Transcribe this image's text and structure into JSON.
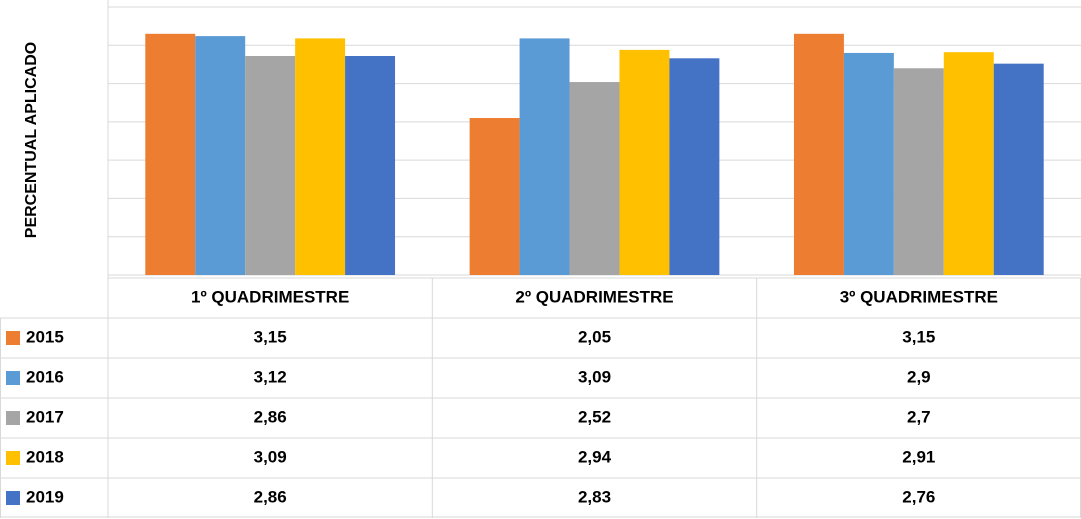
{
  "chart_data": {
    "type": "bar",
    "y_label": "PERCENTUAL APLICADO",
    "categories": [
      "1º QUADRIMESTRE",
      "2º QUADRIMESTRE",
      "3º QUADRIMESTRE"
    ],
    "series": [
      {
        "name": "2015",
        "color": "#ED7D31",
        "values": [
          3.15,
          2.05,
          3.15
        ],
        "value_labels": [
          "3,15",
          "2,05",
          "3,15"
        ]
      },
      {
        "name": "2016",
        "color": "#5B9BD5",
        "values": [
          3.12,
          3.09,
          2.9
        ],
        "value_labels": [
          "3,12",
          "3,09",
          "2,9"
        ]
      },
      {
        "name": "2017",
        "color": "#A5A5A5",
        "values": [
          2.86,
          2.52,
          2.7
        ],
        "value_labels": [
          "2,86",
          "2,52",
          "2,7"
        ]
      },
      {
        "name": "2018",
        "color": "#FFC000",
        "values": [
          3.09,
          2.94,
          2.91
        ],
        "value_labels": [
          "3,09",
          "2,94",
          "2,91"
        ]
      },
      {
        "name": "2019",
        "color": "#4472C4",
        "values": [
          2.86,
          2.83,
          2.76
        ],
        "value_labels": [
          "2,86",
          "2,83",
          "2,76"
        ]
      }
    ],
    "ylim": [
      0,
      3.5
    ],
    "yticks": [
      0,
      0.5,
      1,
      1.5,
      2,
      2.5,
      3,
      3.5
    ],
    "grid": true
  }
}
